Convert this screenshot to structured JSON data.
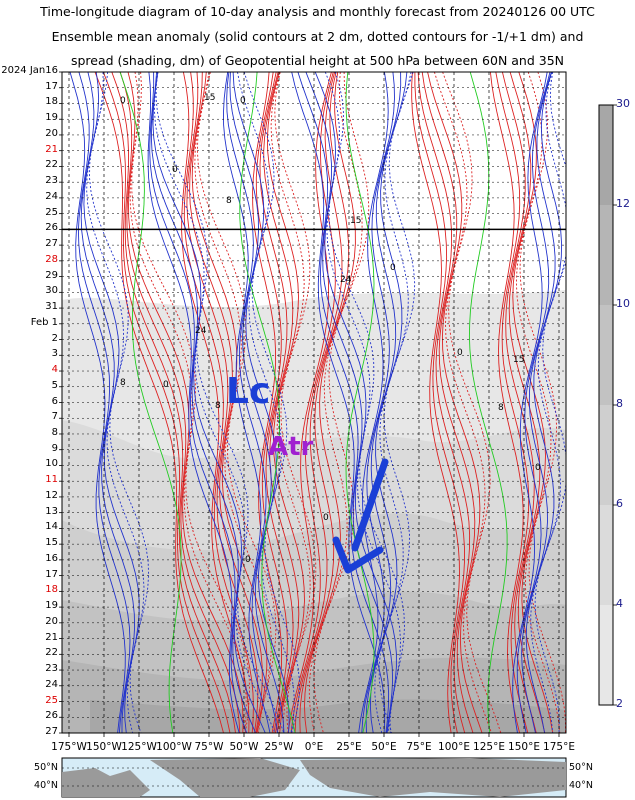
{
  "title": {
    "line1": "Time-longitude diagram of 10-day analysis and monthly forecast from 20240126 00 UTC",
    "line2": "Ensemble mean anomaly (solid contours at 2 dm, dotted contours for -1/+1 dm) and",
    "line3": "spread (shading, dm) of Geopotential height at 500 hPa between 60N and 35N"
  },
  "chart_data": {
    "type": "heatmap",
    "y_axis": {
      "direction": "top-to-bottom",
      "labels": [
        {
          "text": "2024 Jan16",
          "color": "#000000"
        },
        {
          "text": "17",
          "color": "#000000"
        },
        {
          "text": "18",
          "color": "#000000"
        },
        {
          "text": "19",
          "color": "#000000"
        },
        {
          "text": "20",
          "color": "#000000"
        },
        {
          "text": "21",
          "color": "#dd0000"
        },
        {
          "text": "22",
          "color": "#000000"
        },
        {
          "text": "23",
          "color": "#000000"
        },
        {
          "text": "24",
          "color": "#000000"
        },
        {
          "text": "25",
          "color": "#000000"
        },
        {
          "text": "26",
          "color": "#000000"
        },
        {
          "text": "27",
          "color": "#000000"
        },
        {
          "text": "28",
          "color": "#dd0000"
        },
        {
          "text": "29",
          "color": "#000000"
        },
        {
          "text": "30",
          "color": "#000000"
        },
        {
          "text": "31",
          "color": "#000000"
        },
        {
          "text": "Feb 1",
          "color": "#000000"
        },
        {
          "text": "2",
          "color": "#000000"
        },
        {
          "text": "3",
          "color": "#000000"
        },
        {
          "text": "4",
          "color": "#dd0000"
        },
        {
          "text": "5",
          "color": "#000000"
        },
        {
          "text": "6",
          "color": "#000000"
        },
        {
          "text": "7",
          "color": "#000000"
        },
        {
          "text": "8",
          "color": "#000000"
        },
        {
          "text": "9",
          "color": "#000000"
        },
        {
          "text": "10",
          "color": "#000000"
        },
        {
          "text": "11",
          "color": "#dd0000"
        },
        {
          "text": "12",
          "color": "#000000"
        },
        {
          "text": "13",
          "color": "#000000"
        },
        {
          "text": "14",
          "color": "#000000"
        },
        {
          "text": "15",
          "color": "#000000"
        },
        {
          "text": "16",
          "color": "#000000"
        },
        {
          "text": "17",
          "color": "#000000"
        },
        {
          "text": "18",
          "color": "#dd0000"
        },
        {
          "text": "19",
          "color": "#000000"
        },
        {
          "text": "20",
          "color": "#000000"
        },
        {
          "text": "21",
          "color": "#000000"
        },
        {
          "text": "22",
          "color": "#000000"
        },
        {
          "text": "23",
          "color": "#000000"
        },
        {
          "text": "24",
          "color": "#000000"
        },
        {
          "text": "25",
          "color": "#dd0000"
        },
        {
          "text": "26",
          "color": "#000000"
        },
        {
          "text": "27",
          "color": "#000000"
        }
      ],
      "analysis_end_label_index": 10
    },
    "x_axis": {
      "range_deg": [
        -180,
        180
      ],
      "ticks": [
        {
          "value": -175,
          "label": "175°W"
        },
        {
          "value": -150,
          "label": "150°W"
        },
        {
          "value": -125,
          "label": "125°W"
        },
        {
          "value": -100,
          "label": "100°W"
        },
        {
          "value": -75,
          "label": "75°W"
        },
        {
          "value": -50,
          "label": "50°W"
        },
        {
          "value": -25,
          "label": "25°W"
        },
        {
          "value": 0,
          "label": "0°E"
        },
        {
          "value": 25,
          "label": "25°E"
        },
        {
          "value": 50,
          "label": "50°E"
        },
        {
          "value": 75,
          "label": "75°E"
        },
        {
          "value": 100,
          "label": "100°E"
        },
        {
          "value": 125,
          "label": "125°E"
        },
        {
          "value": 150,
          "label": "150°E"
        },
        {
          "value": 175,
          "label": "175°E"
        }
      ]
    },
    "colorbar": {
      "labels": [
        "30",
        "12",
        "10",
        "8",
        "6",
        "4",
        "2"
      ],
      "shades": [
        "#a7a7a7",
        "#b5b5b5",
        "#c2c2c2",
        "#cfcfcf",
        "#dbdbdb",
        "#e7e7e7"
      ]
    },
    "contours": {
      "positive_color": "#dd2222",
      "negative_color": "#2233cc",
      "zero_color": "#22cc22"
    },
    "annotations": [
      {
        "text": "Lc",
        "color": "#1a3fd6"
      },
      {
        "text": "Atr",
        "color": "#a020d0"
      }
    ],
    "contour_labels": [
      "0",
      "0",
      "0",
      "0",
      "8",
      "8",
      "15",
      "15",
      "24",
      "24",
      "8",
      "0",
      "0",
      "15",
      "8",
      "0",
      "0",
      "0"
    ]
  },
  "map_strip": {
    "left_labels": [
      "50°N",
      "40°N"
    ],
    "right_labels": [
      "50°N",
      "40°N"
    ],
    "ocean_color": "#d6ecf7",
    "land_color": "#9a9a9a"
  }
}
